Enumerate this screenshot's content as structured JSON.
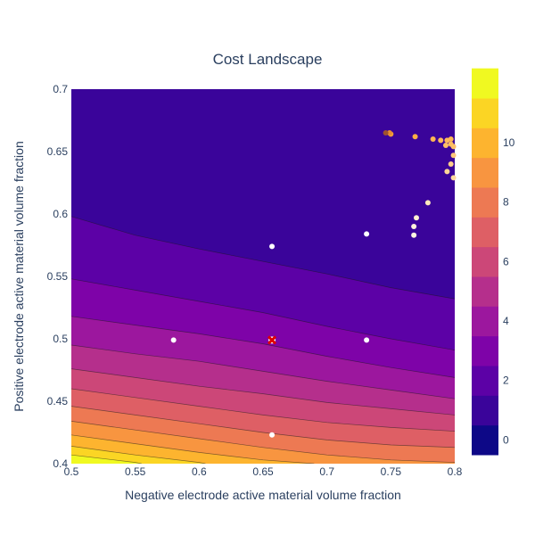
{
  "chart_data": {
    "type": "contour",
    "title": "Cost Landscape",
    "xlabel": "Negative electrode active material volume fraction",
    "ylabel": "Positive electrode active material volume fraction",
    "xlim": [
      0.5,
      0.8
    ],
    "ylim": [
      0.4,
      0.7
    ],
    "x_ticks": [
      "0.5",
      "0.55",
      "0.6",
      "0.65",
      "0.7",
      "0.75",
      "0.8"
    ],
    "y_ticks": [
      "0.4",
      "0.45",
      "0.5",
      "0.55",
      "0.6",
      "0.65",
      "0.7"
    ],
    "colorbar": {
      "ticks": [
        "0",
        "2",
        "4",
        "6",
        "8",
        "10"
      ],
      "range": [
        -0.5,
        11.5
      ],
      "colors": [
        "#0d0887",
        "#3a049a",
        "#5c01a6",
        "#7e03a8",
        "#9c179e",
        "#b52f8c",
        "#cc4778",
        "#de5f65",
        "#ed7953",
        "#f89540",
        "#fdb42f",
        "#fbd524",
        "#f0f921"
      ]
    },
    "contour_lines": [
      {
        "level": 1,
        "points": [
          [
            0.5,
            0.598
          ],
          [
            0.55,
            0.583
          ],
          [
            0.6,
            0.572
          ],
          [
            0.65,
            0.562
          ],
          [
            0.7,
            0.552
          ],
          [
            0.75,
            0.541
          ],
          [
            0.8,
            0.532
          ]
        ]
      },
      {
        "level": 2,
        "points": [
          [
            0.5,
            0.548
          ],
          [
            0.55,
            0.539
          ],
          [
            0.6,
            0.53
          ],
          [
            0.65,
            0.521
          ],
          [
            0.7,
            0.51
          ],
          [
            0.75,
            0.5
          ],
          [
            0.8,
            0.491
          ]
        ]
      },
      {
        "level": 3,
        "points": [
          [
            0.5,
            0.518
          ],
          [
            0.55,
            0.511
          ],
          [
            0.6,
            0.504
          ],
          [
            0.65,
            0.496
          ],
          [
            0.7,
            0.486
          ],
          [
            0.75,
            0.477
          ],
          [
            0.8,
            0.469
          ]
        ]
      },
      {
        "level": 4,
        "points": [
          [
            0.5,
            0.495
          ],
          [
            0.55,
            0.488
          ],
          [
            0.6,
            0.482
          ],
          [
            0.65,
            0.474
          ],
          [
            0.7,
            0.466
          ],
          [
            0.75,
            0.459
          ],
          [
            0.8,
            0.452
          ]
        ]
      },
      {
        "level": 5,
        "points": [
          [
            0.5,
            0.476
          ],
          [
            0.55,
            0.469
          ],
          [
            0.6,
            0.462
          ],
          [
            0.65,
            0.456
          ],
          [
            0.7,
            0.449
          ],
          [
            0.75,
            0.444
          ],
          [
            0.8,
            0.439
          ]
        ]
      },
      {
        "level": 6,
        "points": [
          [
            0.5,
            0.46
          ],
          [
            0.55,
            0.453
          ],
          [
            0.6,
            0.446
          ],
          [
            0.65,
            0.439
          ],
          [
            0.7,
            0.433
          ],
          [
            0.75,
            0.429
          ],
          [
            0.8,
            0.426
          ]
        ]
      },
      {
        "level": 7,
        "points": [
          [
            0.5,
            0.446
          ],
          [
            0.55,
            0.439
          ],
          [
            0.6,
            0.432
          ],
          [
            0.65,
            0.425
          ],
          [
            0.7,
            0.419
          ],
          [
            0.75,
            0.415
          ],
          [
            0.8,
            0.413
          ]
        ]
      },
      {
        "level": 8,
        "points": [
          [
            0.5,
            0.434
          ],
          [
            0.55,
            0.427
          ],
          [
            0.6,
            0.42
          ],
          [
            0.65,
            0.413
          ],
          [
            0.7,
            0.407
          ],
          [
            0.75,
            0.403
          ],
          [
            0.8,
            0.401
          ]
        ]
      },
      {
        "level": 9,
        "points": [
          [
            0.5,
            0.423
          ],
          [
            0.55,
            0.416
          ],
          [
            0.6,
            0.409
          ],
          [
            0.65,
            0.403
          ],
          [
            0.69,
            0.4
          ]
        ]
      },
      {
        "level": 10,
        "points": [
          [
            0.5,
            0.414
          ],
          [
            0.55,
            0.407
          ],
          [
            0.6,
            0.401
          ],
          [
            0.605,
            0.4
          ]
        ]
      },
      {
        "level": 11,
        "points": [
          [
            0.5,
            0.407
          ],
          [
            0.55,
            0.401
          ],
          [
            0.555,
            0.4
          ]
        ]
      }
    ],
    "scatter_points": [
      {
        "x": 0.657,
        "y": 0.574,
        "color": "#ffffff"
      },
      {
        "x": 0.731,
        "y": 0.584,
        "color": "#ffffff"
      },
      {
        "x": 0.58,
        "y": 0.499,
        "color": "#ffffff"
      },
      {
        "x": 0.731,
        "y": 0.499,
        "color": "#ffffff"
      },
      {
        "x": 0.657,
        "y": 0.423,
        "color": "#ffffff"
      },
      {
        "x": 0.768,
        "y": 0.583,
        "color": "#fff5e1"
      },
      {
        "x": 0.768,
        "y": 0.59,
        "color": "#fff3dc"
      },
      {
        "x": 0.77,
        "y": 0.597,
        "color": "#ffefd2"
      },
      {
        "x": 0.779,
        "y": 0.609,
        "color": "#ffe7bd"
      },
      {
        "x": 0.794,
        "y": 0.634,
        "color": "#ffd598"
      },
      {
        "x": 0.797,
        "y": 0.64,
        "color": "#ffcf8a"
      },
      {
        "x": 0.799,
        "y": 0.647,
        "color": "#ffc87a"
      },
      {
        "x": 0.799,
        "y": 0.629,
        "color": "#ffd99f"
      },
      {
        "x": 0.793,
        "y": 0.655,
        "color": "#ffbf66"
      },
      {
        "x": 0.789,
        "y": 0.659,
        "color": "#ffba5c"
      },
      {
        "x": 0.794,
        "y": 0.659,
        "color": "#ffba5b"
      },
      {
        "x": 0.797,
        "y": 0.66,
        "color": "#ffb855"
      },
      {
        "x": 0.797,
        "y": 0.656,
        "color": "#ffbd60"
      },
      {
        "x": 0.799,
        "y": 0.654,
        "color": "#ffc068"
      },
      {
        "x": 0.783,
        "y": 0.66,
        "color": "#ffb553"
      },
      {
        "x": 0.769,
        "y": 0.662,
        "color": "#ffae45"
      },
      {
        "x": 0.75,
        "y": 0.664,
        "color": "#f4a03a"
      },
      {
        "x": 0.749,
        "y": 0.665,
        "color": "#e98d33"
      },
      {
        "x": 0.746,
        "y": 0.665,
        "color": "#a0522d"
      }
    ],
    "optimum": {
      "x": 0.657,
      "y": 0.499
    }
  }
}
